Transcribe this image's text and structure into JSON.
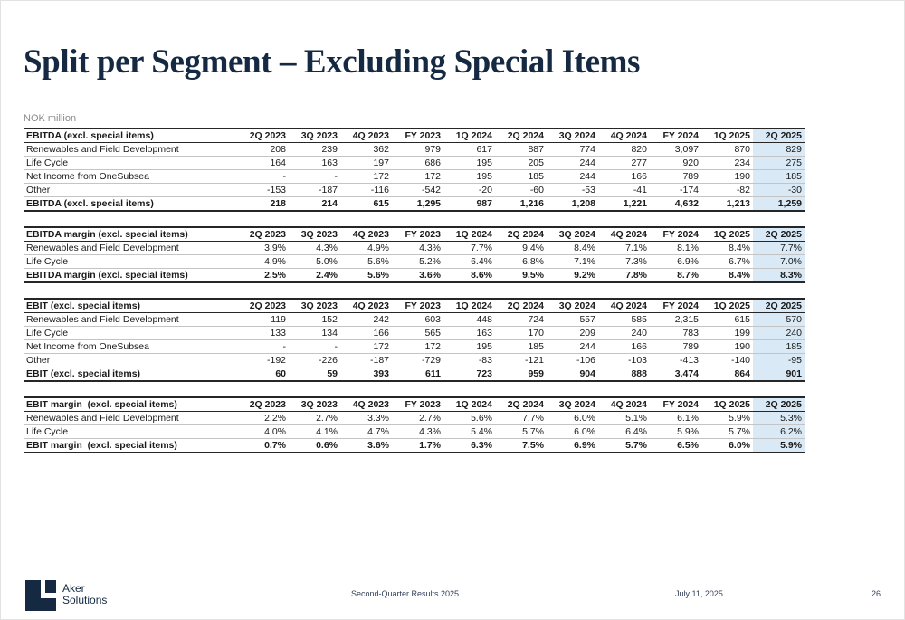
{
  "slide": {
    "title": "Split per Segment – Excluding Special Items",
    "unit_label": "NOK million"
  },
  "colors": {
    "brand_navy": "#152a42",
    "highlight_column_bg": "#d9eaf6"
  },
  "columns": [
    "2Q 2023",
    "3Q 2023",
    "4Q 2023",
    "FY 2023",
    "1Q 2024",
    "2Q 2024",
    "3Q 2024",
    "4Q 2024",
    "FY 2024",
    "1Q 2025",
    "2Q 2025"
  ],
  "highlighted_column": "2Q 2025",
  "tables": [
    {
      "id": "ebitda",
      "header_label": "EBITDA (excl. special items)",
      "rows": [
        {
          "label": "Renewables and Field Development",
          "values": [
            "208",
            "239",
            "362",
            "979",
            "617",
            "887",
            "774",
            "820",
            "3,097",
            "870",
            "829"
          ]
        },
        {
          "label": "Life Cycle",
          "values": [
            "164",
            "163",
            "197",
            "686",
            "195",
            "205",
            "244",
            "277",
            "920",
            "234",
            "275"
          ]
        },
        {
          "label": "Net Income from OneSubsea",
          "values": [
            "-",
            "-",
            "172",
            "172",
            "195",
            "185",
            "244",
            "166",
            "789",
            "190",
            "185"
          ]
        },
        {
          "label": "Other",
          "values": [
            "-153",
            "-187",
            "-116",
            "-542",
            "-20",
            "-60",
            "-53",
            "-41",
            "-174",
            "-82",
            "-30"
          ]
        }
      ],
      "total": {
        "label": "EBITDA (excl. special items)",
        "values": [
          "218",
          "214",
          "615",
          "1,295",
          "987",
          "1,216",
          "1,208",
          "1,221",
          "4,632",
          "1,213",
          "1,259"
        ]
      }
    },
    {
      "id": "ebitda-margin",
      "header_label": "EBITDA margin (excl. special items)",
      "rows": [
        {
          "label": "Renewables and Field Development",
          "values": [
            "3.9%",
            "4.3%",
            "4.9%",
            "4.3%",
            "7.7%",
            "9.4%",
            "8.4%",
            "7.1%",
            "8.1%",
            "8.4%",
            "7.7%"
          ]
        },
        {
          "label": "Life Cycle",
          "values": [
            "4.9%",
            "5.0%",
            "5.6%",
            "5.2%",
            "6.4%",
            "6.8%",
            "7.1%",
            "7.3%",
            "6.9%",
            "6.7%",
            "7.0%"
          ]
        }
      ],
      "total": {
        "label": "EBITDA margin (excl. special items)",
        "values": [
          "2.5%",
          "2.4%",
          "5.6%",
          "3.6%",
          "8.6%",
          "9.5%",
          "9.2%",
          "7.8%",
          "8.7%",
          "8.4%",
          "8.3%"
        ]
      }
    },
    {
      "id": "ebit",
      "header_label": "EBIT (excl. special items)",
      "rows": [
        {
          "label": "Renewables and Field Development",
          "values": [
            "119",
            "152",
            "242",
            "603",
            "448",
            "724",
            "557",
            "585",
            "2,315",
            "615",
            "570"
          ]
        },
        {
          "label": "Life Cycle",
          "values": [
            "133",
            "134",
            "166",
            "565",
            "163",
            "170",
            "209",
            "240",
            "783",
            "199",
            "240"
          ]
        },
        {
          "label": "Net Income from OneSubsea",
          "values": [
            "-",
            "-",
            "172",
            "172",
            "195",
            "185",
            "244",
            "166",
            "789",
            "190",
            "185"
          ]
        },
        {
          "label": "Other",
          "values": [
            "-192",
            "-226",
            "-187",
            "-729",
            "-83",
            "-121",
            "-106",
            "-103",
            "-413",
            "-140",
            "-95"
          ]
        }
      ],
      "total": {
        "label": "EBIT (excl. special items)",
        "values": [
          "60",
          "59",
          "393",
          "611",
          "723",
          "959",
          "904",
          "888",
          "3,474",
          "864",
          "901"
        ]
      }
    },
    {
      "id": "ebit-margin",
      "header_label": "EBIT margin  (excl. special items)",
      "rows": [
        {
          "label": "Renewables and Field Development",
          "values": [
            "2.2%",
            "2.7%",
            "3.3%",
            "2.7%",
            "5.6%",
            "7.7%",
            "6.0%",
            "5.1%",
            "6.1%",
            "5.9%",
            "5.3%"
          ]
        },
        {
          "label": "Life Cycle",
          "values": [
            "4.0%",
            "4.1%",
            "4.7%",
            "4.3%",
            "5.4%",
            "5.7%",
            "6.0%",
            "6.4%",
            "5.9%",
            "5.7%",
            "6.2%"
          ]
        }
      ],
      "total": {
        "label": "EBIT margin  (excl. special items)",
        "values": [
          "0.7%",
          "0.6%",
          "3.6%",
          "1.7%",
          "6.3%",
          "7.5%",
          "6.9%",
          "5.7%",
          "6.5%",
          "6.0%",
          "5.9%"
        ]
      }
    }
  ],
  "footer": {
    "brand_line1": "Aker",
    "brand_line2": "Solutions",
    "presentation": "Second-Quarter Results 2025",
    "date": "July 11, 2025",
    "page_number": "26"
  }
}
